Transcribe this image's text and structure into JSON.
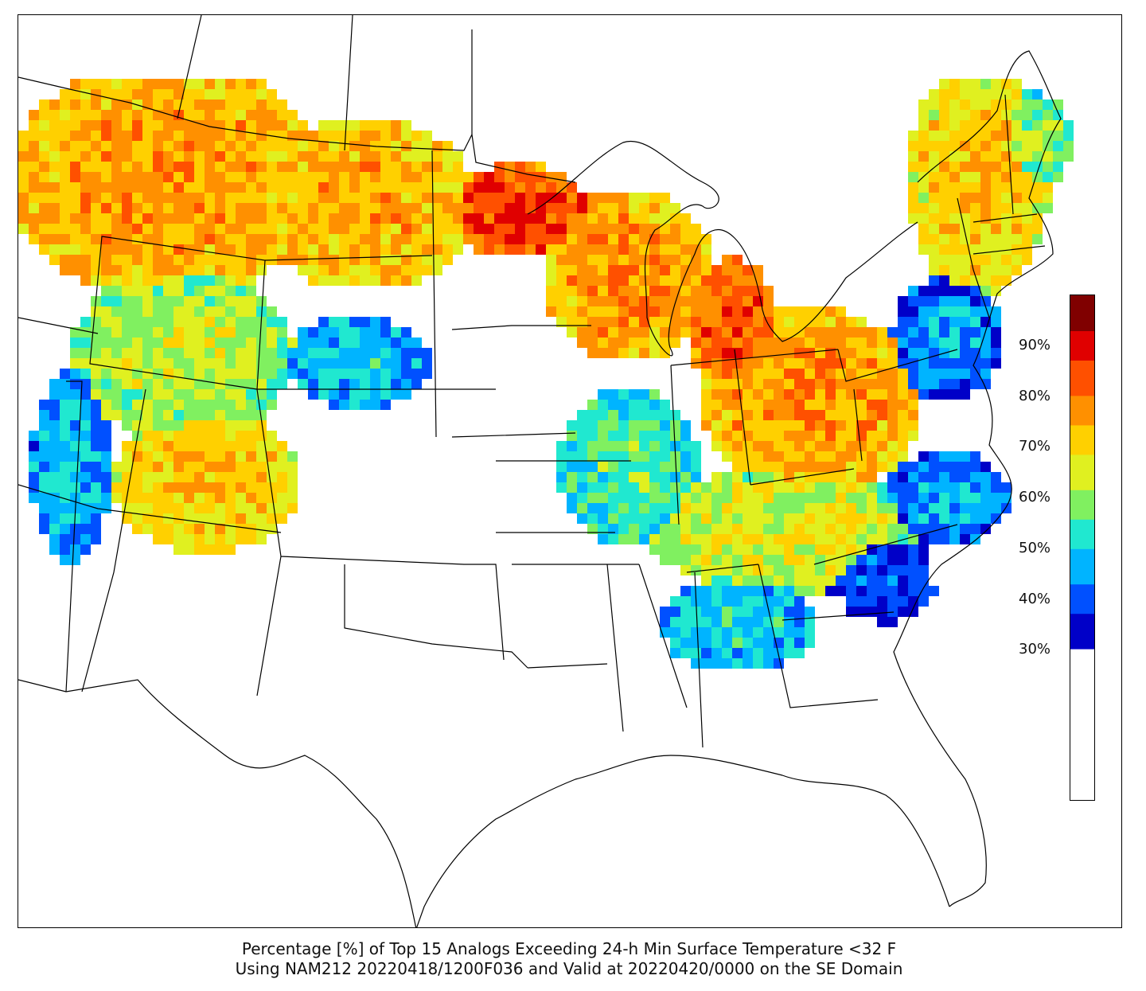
{
  "map": {
    "projection": "Lambert Conformal (CONUS)",
    "variable": "probability",
    "colors": {
      "background": "#ffffff",
      "outline": "#000000"
    }
  },
  "colorbar": {
    "ticks": [
      "90%",
      "80%",
      "70%",
      "60%",
      "50%",
      "40%",
      "30%"
    ],
    "min_percent": 30,
    "max_percent": 100,
    "colormap": [
      "#0000c8",
      "#0050ff",
      "#00b4ff",
      "#20e8d0",
      "#80f060",
      "#e0f020",
      "#ffd000",
      "#ff9000",
      "#ff5000",
      "#e00000",
      "#800000"
    ]
  },
  "caption": {
    "line1": "Percentage [%] of Top 15 Analogs Exceeding 24-h Min Surface Temperature <32 F",
    "line2": "Using NAM212 20220418/1200F036 and Valid at 20220420/0000 on the SE Domain"
  }
}
